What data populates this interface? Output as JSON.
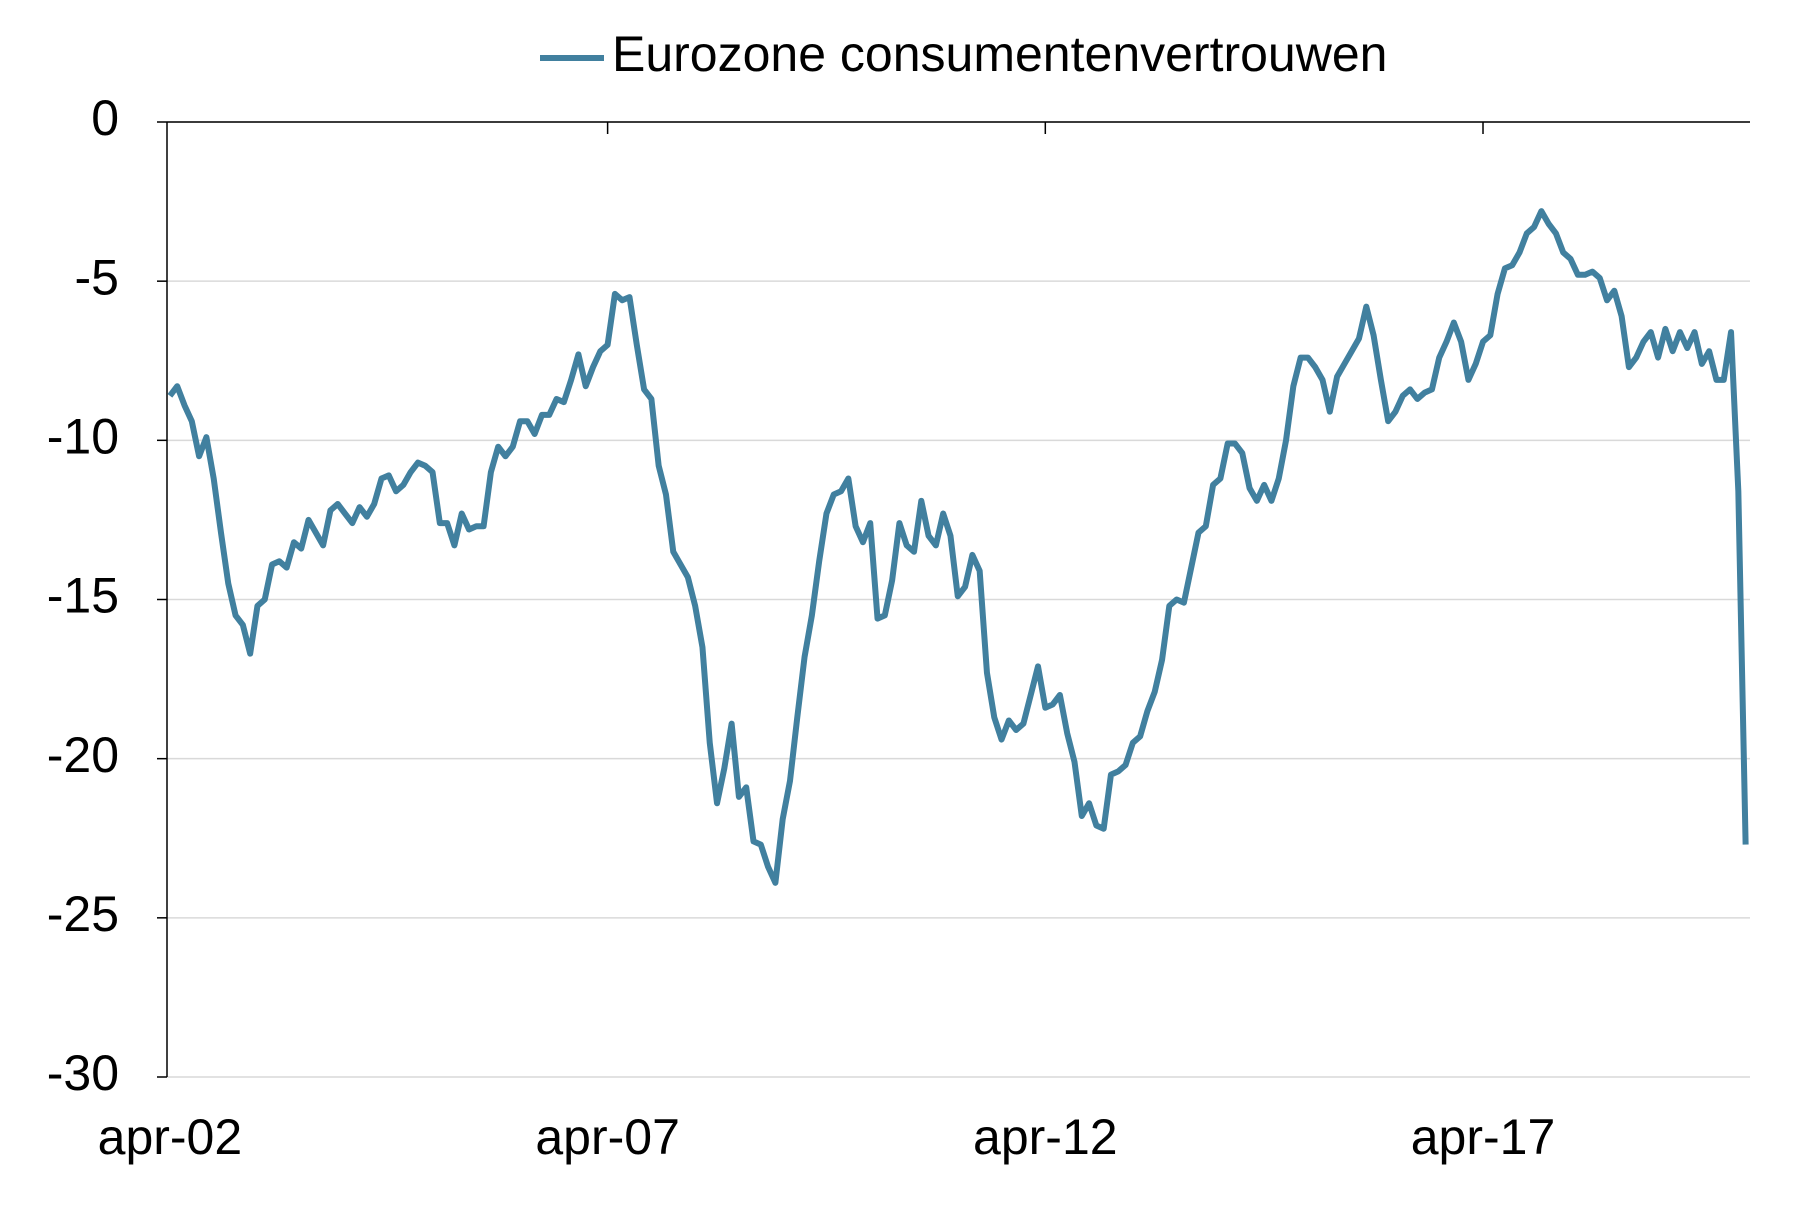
{
  "chart_data": {
    "type": "line",
    "legend": "top",
    "grid": true,
    "ylim": [
      -30,
      0
    ],
    "yticks": [
      -30,
      -25,
      -20,
      -15,
      -10,
      -5,
      0
    ],
    "categories": [
      "apr-02",
      null,
      null,
      null,
      null,
      null,
      null,
      null,
      null,
      null,
      null,
      null,
      null,
      null,
      null,
      null,
      null,
      null,
      null,
      null,
      null,
      null,
      null,
      null,
      null,
      null,
      null,
      null,
      null,
      null,
      null,
      null,
      null,
      null,
      null,
      null,
      null,
      null,
      null,
      null,
      null,
      null,
      null,
      null,
      null,
      null,
      null,
      null,
      null,
      null,
      null,
      null,
      null,
      null,
      null,
      null,
      null,
      null,
      null,
      null,
      "apr-07",
      null,
      null,
      null,
      null,
      null,
      null,
      null,
      null,
      null,
      null,
      null,
      null,
      null,
      null,
      null,
      null,
      null,
      null,
      null,
      null,
      null,
      null,
      null,
      null,
      null,
      null,
      null,
      null,
      null,
      null,
      null,
      null,
      null,
      null,
      null,
      null,
      null,
      null,
      null,
      null,
      null,
      null,
      null,
      null,
      null,
      null,
      null,
      null,
      null,
      null,
      null,
      null,
      null,
      null,
      null,
      null,
      null,
      null,
      null,
      "apr-12",
      null,
      null,
      null,
      null,
      null,
      null,
      null,
      null,
      null,
      null,
      null,
      null,
      null,
      null,
      null,
      null,
      null,
      null,
      null,
      null,
      null,
      null,
      null,
      null,
      null,
      null,
      null,
      null,
      null,
      null,
      null,
      null,
      null,
      null,
      null,
      null,
      null,
      null,
      null,
      null,
      null,
      null,
      null,
      null,
      null,
      null,
      null,
      null,
      null,
      null,
      null,
      null,
      null,
      null,
      null,
      null,
      null,
      null,
      null,
      "apr-17",
      null,
      null,
      null,
      null,
      null,
      null,
      null,
      null,
      null,
      null,
      null,
      null,
      null,
      null,
      null,
      null,
      null,
      null,
      null,
      null,
      null,
      null,
      null,
      null,
      null,
      null,
      null,
      null,
      null,
      null,
      null,
      null,
      null,
      null,
      null,
      null
    ],
    "series": [
      {
        "name": "Eurozone consumentenvertrouwen",
        "color": "#41809f",
        "values": [
          -8.6,
          -8.3,
          -8.9,
          -9.4,
          -10.5,
          -9.9,
          -11.2,
          -12.9,
          -14.5,
          -15.5,
          -15.8,
          -16.7,
          -15.2,
          -15.0,
          -13.9,
          -13.8,
          -14.0,
          -13.2,
          -13.4,
          -12.5,
          -12.9,
          -13.3,
          -12.2,
          -12.0,
          -12.3,
          -12.6,
          -12.1,
          -12.4,
          -12.0,
          -11.2,
          -11.1,
          -11.6,
          -11.4,
          -11.0,
          -10.7,
          -10.8,
          -11.0,
          -12.6,
          -12.6,
          -13.3,
          -12.3,
          -12.8,
          -12.7,
          -12.7,
          -11.0,
          -10.2,
          -10.5,
          -10.2,
          -9.4,
          -9.4,
          -9.8,
          -9.2,
          -9.2,
          -8.7,
          -8.8,
          -8.1,
          -7.3,
          -8.3,
          -7.7,
          -7.2,
          -7.0,
          -5.4,
          -5.6,
          -5.5,
          -7.0,
          -8.4,
          -8.7,
          -10.8,
          -11.7,
          -13.5,
          -13.9,
          -14.3,
          -15.2,
          -16.5,
          -19.5,
          -21.4,
          -20.3,
          -18.9,
          -21.2,
          -20.9,
          -22.6,
          -22.7,
          -23.4,
          -23.9,
          -21.9,
          -20.7,
          -18.7,
          -16.8,
          -15.5,
          -13.8,
          -12.3,
          -11.7,
          -11.6,
          -11.2,
          -12.7,
          -13.2,
          -12.6,
          -15.6,
          -15.5,
          -14.4,
          -12.6,
          -13.3,
          -13.5,
          -11.9,
          -13.0,
          -13.3,
          -12.3,
          -13.0,
          -14.9,
          -14.6,
          -13.6,
          -14.1,
          -17.3,
          -18.7,
          -19.4,
          -18.8,
          -19.1,
          -18.9,
          -18.0,
          -17.1,
          -18.4,
          -18.3,
          -18.0,
          -19.2,
          -20.1,
          -21.8,
          -21.4,
          -22.1,
          -22.2,
          -20.5,
          -20.4,
          -20.2,
          -19.5,
          -19.3,
          -18.5,
          -17.9,
          -16.9,
          -15.2,
          -15.0,
          -15.1,
          -14.0,
          -12.9,
          -12.7,
          -11.4,
          -11.2,
          -10.1,
          -10.1,
          -10.4,
          -11.5,
          -11.9,
          -11.4,
          -11.9,
          -11.2,
          -10.0,
          -8.3,
          -7.4,
          -7.4,
          -7.7,
          -8.1,
          -9.1,
          -8.0,
          -7.6,
          -7.2,
          -6.8,
          -5.8,
          -6.7,
          -8.1,
          -9.4,
          -9.1,
          -8.6,
          -8.4,
          -8.7,
          -8.5,
          -8.4,
          -7.4,
          -6.9,
          -6.3,
          -6.9,
          -8.1,
          -7.6,
          -6.9,
          -6.7,
          -5.4,
          -4.6,
          -4.5,
          -4.1,
          -3.5,
          -3.3,
          -2.8,
          -3.2,
          -3.5,
          -4.1,
          -4.3,
          -4.8,
          -4.8,
          -4.7,
          -4.9,
          -5.6,
          -5.3,
          -6.1,
          -7.7,
          -7.4,
          -6.9,
          -6.6,
          -7.4,
          -6.5,
          -7.2,
          -6.6,
          -7.1,
          -6.6,
          -7.6,
          -7.2,
          -8.1,
          -8.1,
          -6.6,
          -11.6,
          -22.7
        ]
      }
    ]
  }
}
